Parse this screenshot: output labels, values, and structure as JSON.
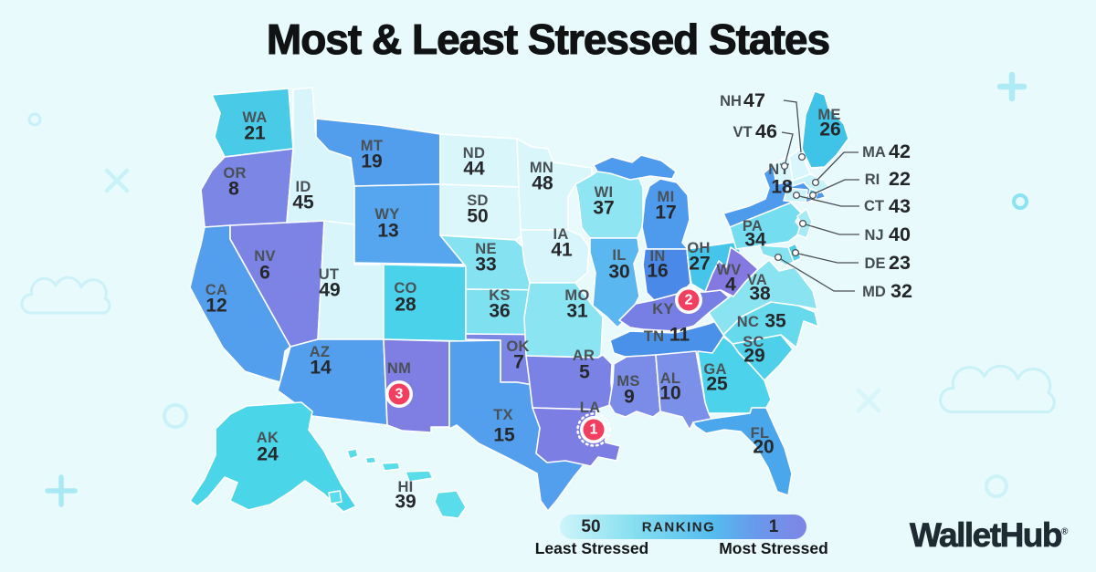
{
  "title": "Most & Least Stressed States",
  "brand": {
    "name": "WalletHub",
    "registered": "®"
  },
  "legend": {
    "left_value": "50",
    "center_label": "RANKING",
    "right_value": "1",
    "left_caption": "Least Stressed",
    "right_caption": "Most Stressed",
    "gradient": [
      "#CEF4FA",
      "#86DFF0",
      "#55BCEE",
      "#7F86E5"
    ]
  },
  "colors": {
    "background": "#E8FAFC",
    "state_border": "#FFFFFF",
    "abbr_text": "#4A5156",
    "rank_text": "#26282B",
    "callout_line": "#4A4F54",
    "badge_fill": "#F23E5F",
    "badge_text": "#FFFFFF",
    "title_text": "#101214"
  },
  "icons": {
    "decorative_motifs": [
      "cloud-icon",
      "plus-icon",
      "circle-outline-icon",
      "x-icon"
    ]
  },
  "chart_data": {
    "type": "heatmap",
    "subtype": "us_state_choropleth",
    "title": "Most & Least Stressed States",
    "ranking_scale": {
      "min": 1,
      "max": 50,
      "min_label": "Most Stressed",
      "max_label": "Least Stressed"
    },
    "badged_top3": [
      "LA",
      "KY",
      "NM"
    ],
    "states": [
      {
        "abbr": "WA",
        "rank": 21,
        "color": "#49CBE7"
      },
      {
        "abbr": "OR",
        "rank": 8,
        "color": "#7B86E5"
      },
      {
        "abbr": "CA",
        "rank": 12,
        "color": "#549FED"
      },
      {
        "abbr": "NV",
        "rank": 6,
        "color": "#7D83E4"
      },
      {
        "abbr": "ID",
        "rank": 45,
        "color": "#D7F5FA"
      },
      {
        "abbr": "MT",
        "rank": 19,
        "color": "#539EEC"
      },
      {
        "abbr": "WY",
        "rank": 13,
        "color": "#55A6EE"
      },
      {
        "abbr": "UT",
        "rank": 49,
        "color": "#D7F5FA"
      },
      {
        "abbr": "CO",
        "rank": 28,
        "color": "#4BD2EB"
      },
      {
        "abbr": "AZ",
        "rank": 14,
        "color": "#549FED"
      },
      {
        "abbr": "NM",
        "rank": 3,
        "color": "#7F7EE3",
        "badge": true
      },
      {
        "abbr": "ND",
        "rank": 44,
        "color": "#D9F6FB"
      },
      {
        "abbr": "SD",
        "rank": 50,
        "color": "#DCF7FB"
      },
      {
        "abbr": "NE",
        "rank": 33,
        "color": "#85E2F0"
      },
      {
        "abbr": "KS",
        "rank": 36,
        "color": "#7FE0EF"
      },
      {
        "abbr": "OK",
        "rank": 7,
        "color": "#7B86E5"
      },
      {
        "abbr": "TX",
        "rank": 15,
        "color": "#549FED"
      },
      {
        "abbr": "MN",
        "rank": 48,
        "color": "#D9F6FB"
      },
      {
        "abbr": "IA",
        "rank": 41,
        "color": "#D7F5FA"
      },
      {
        "abbr": "MO",
        "rank": 31,
        "color": "#8BE4F1"
      },
      {
        "abbr": "AR",
        "rank": 5,
        "color": "#7B82E5"
      },
      {
        "abbr": "LA",
        "rank": 1,
        "color": "#7D7EE3",
        "badge": true
      },
      {
        "abbr": "WI",
        "rank": 37,
        "color": "#8FE5F1"
      },
      {
        "abbr": "IL",
        "rank": 30,
        "color": "#5BB7EF"
      },
      {
        "abbr": "MI",
        "rank": 17,
        "color": "#4E9AEC"
      },
      {
        "abbr": "IN",
        "rank": 16,
        "color": "#4B89E9"
      },
      {
        "abbr": "OH",
        "rank": 27,
        "color": "#44C5E9"
      },
      {
        "abbr": "KY",
        "rank": 2,
        "color": "#777FE4",
        "badge": true
      },
      {
        "abbr": "TN",
        "rank": 11,
        "color": "#4A91EA"
      },
      {
        "abbr": "MS",
        "rank": 9,
        "color": "#7B8CE8"
      },
      {
        "abbr": "AL",
        "rank": 10,
        "color": "#7B90E9"
      },
      {
        "abbr": "GA",
        "rank": 25,
        "color": "#4DD2EB"
      },
      {
        "abbr": "SC",
        "rank": 29,
        "color": "#4FD0EA"
      },
      {
        "abbr": "NC",
        "rank": 35,
        "color": "#67D9ED"
      },
      {
        "abbr": "FL",
        "rank": 20,
        "color": "#4BA7EC"
      },
      {
        "abbr": "VA",
        "rank": 38,
        "color": "#8AE3F1"
      },
      {
        "abbr": "WV",
        "rank": 4,
        "color": "#8478E1"
      },
      {
        "abbr": "PA",
        "rank": 34,
        "color": "#74DDEF"
      },
      {
        "abbr": "NY",
        "rank": 18,
        "color": "#4E9AEC"
      },
      {
        "abbr": "ME",
        "rank": 26,
        "color": "#3FC3E7"
      },
      {
        "abbr": "VT",
        "rank": 46,
        "color": "#D8F6FB",
        "callout": true
      },
      {
        "abbr": "NH",
        "rank": 47,
        "color": "#D8F6FB",
        "callout": true
      },
      {
        "abbr": "MA",
        "rank": 42,
        "color": "#C9F2F9",
        "callout": true
      },
      {
        "abbr": "RI",
        "rank": 22,
        "color": "#49C9E9",
        "callout": true
      },
      {
        "abbr": "CT",
        "rank": 43,
        "color": "#CBF2F9",
        "callout": true
      },
      {
        "abbr": "NJ",
        "rank": 40,
        "color": "#A5EAF4",
        "callout": true
      },
      {
        "abbr": "DE",
        "rank": 23,
        "color": "#4BD1EA",
        "callout": true
      },
      {
        "abbr": "MD",
        "rank": 32,
        "color": "#85E2F0",
        "callout": true
      },
      {
        "abbr": "AK",
        "rank": 24,
        "color": "#4BD5E9"
      },
      {
        "abbr": "HI",
        "rank": 39,
        "color": "#59DDEB"
      }
    ]
  }
}
